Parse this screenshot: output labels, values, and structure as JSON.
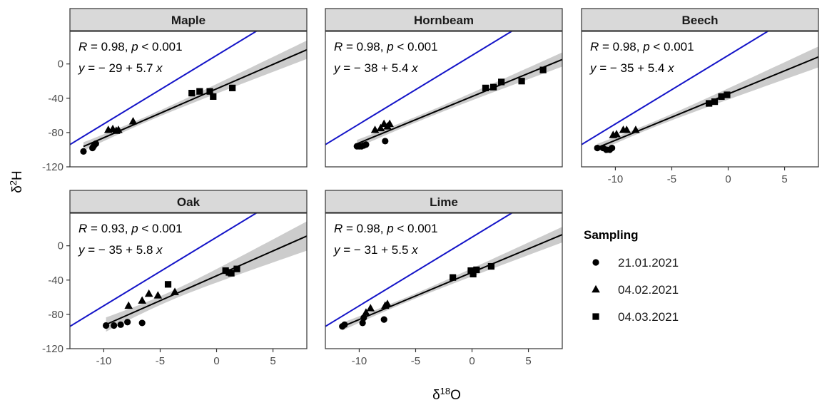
{
  "chart_data": {
    "type": "scatter",
    "xlabel": "δ¹⁸O",
    "ylabel": "δ²H",
    "xlim": [
      -13,
      8
    ],
    "ylim": [
      -120,
      38
    ],
    "x_ticks": [
      "-10",
      "-5",
      "0",
      "5"
    ],
    "x_tick_values": [
      -10,
      -5,
      0,
      5
    ],
    "y_ticks": [
      "0",
      "-40",
      "-80",
      "-120"
    ],
    "y_tick_values": [
      0,
      -40,
      -80,
      -120
    ],
    "grid": false,
    "legend": {
      "title": "Sampling",
      "position": "right",
      "entries": [
        {
          "label": "21.01.2021",
          "shape": "circle"
        },
        {
          "label": "04.02.2021",
          "shape": "triangle"
        },
        {
          "label": "04.03.2021",
          "shape": "square"
        }
      ]
    },
    "colors": {
      "reference_line": "#1414c8",
      "fit_line": "#000000",
      "confidence_band": "#cccccc",
      "strip": "#d9d9d9"
    },
    "reference_line": {
      "intercept": 10,
      "slope": 8
    },
    "panels": [
      {
        "name": "Maple",
        "stats": {
          "R": "0.98",
          "p": "0.001",
          "intercept": "29",
          "slope": "5.7"
        },
        "fit": {
          "intercept": -29,
          "slope": 5.7
        },
        "series": [
          {
            "shape": "circle",
            "points": [
              [
                -11.8,
                -102
              ],
              [
                -11.0,
                -98
              ],
              [
                -10.9,
                -96
              ],
              [
                -10.7,
                -93
              ]
            ]
          },
          {
            "shape": "triangle",
            "points": [
              [
                -9.6,
                -77
              ],
              [
                -9.2,
                -76
              ],
              [
                -8.9,
                -78
              ],
              [
                -8.7,
                -77
              ],
              [
                -7.4,
                -67
              ]
            ]
          },
          {
            "shape": "square",
            "points": [
              [
                -2.2,
                -34
              ],
              [
                -1.5,
                -32
              ],
              [
                -0.6,
                -32
              ],
              [
                -0.3,
                -38
              ],
              [
                1.4,
                -28
              ]
            ]
          }
        ]
      },
      {
        "name": "Hornbeam",
        "stats": {
          "R": "0.98",
          "p": "0.001",
          "intercept": "38",
          "slope": "5.4"
        },
        "fit": {
          "intercept": -38,
          "slope": 5.4
        },
        "series": [
          {
            "shape": "circle",
            "points": [
              [
                -10.2,
                -96
              ],
              [
                -10.0,
                -96
              ],
              [
                -9.8,
                -96
              ],
              [
                -9.6,
                -95
              ],
              [
                -9.4,
                -94
              ],
              [
                -7.7,
                -90
              ]
            ]
          },
          {
            "shape": "triangle",
            "points": [
              [
                -8.6,
                -77
              ],
              [
                -8.1,
                -75
              ],
              [
                -7.8,
                -70
              ],
              [
                -7.5,
                -73
              ],
              [
                -7.3,
                -70
              ]
            ]
          },
          {
            "shape": "square",
            "points": [
              [
                1.2,
                -28
              ],
              [
                1.9,
                -27
              ],
              [
                2.6,
                -21
              ],
              [
                4.4,
                -20
              ],
              [
                6.3,
                -7
              ]
            ]
          }
        ]
      },
      {
        "name": "Beech",
        "stats": {
          "R": "0.98",
          "p": "0.001",
          "intercept": "35",
          "slope": "5.4"
        },
        "fit": {
          "intercept": -35,
          "slope": 5.4
        },
        "series": [
          {
            "shape": "circle",
            "points": [
              [
                -11.6,
                -98
              ],
              [
                -11.1,
                -98
              ],
              [
                -10.8,
                -100
              ],
              [
                -10.5,
                -100
              ],
              [
                -10.3,
                -98
              ]
            ]
          },
          {
            "shape": "triangle",
            "points": [
              [
                -10.2,
                -83
              ],
              [
                -9.9,
                -82
              ],
              [
                -9.3,
                -77
              ],
              [
                -9.0,
                -77
              ],
              [
                -8.2,
                -77
              ]
            ]
          },
          {
            "shape": "square",
            "points": [
              [
                -1.7,
                -46
              ],
              [
                -1.2,
                -44
              ],
              [
                -0.6,
                -38
              ],
              [
                -0.1,
                -36
              ]
            ]
          }
        ]
      },
      {
        "name": "Oak",
        "stats": {
          "R": "0.93",
          "p": "0.001",
          "intercept": "35",
          "slope": "5.8"
        },
        "fit": {
          "intercept": -35,
          "slope": 5.8
        },
        "series": [
          {
            "shape": "circle",
            "points": [
              [
                -9.8,
                -93
              ],
              [
                -9.1,
                -93
              ],
              [
                -8.5,
                -92
              ],
              [
                -7.9,
                -89
              ],
              [
                -6.6,
                -90
              ]
            ]
          },
          {
            "shape": "triangle",
            "points": [
              [
                -7.8,
                -70
              ],
              [
                -6.6,
                -64
              ],
              [
                -6.0,
                -56
              ],
              [
                -5.2,
                -58
              ],
              [
                -3.7,
                -54
              ]
            ]
          },
          {
            "shape": "square",
            "points": [
              [
                -4.3,
                -45
              ],
              [
                0.8,
                -29
              ],
              [
                1.1,
                -31
              ],
              [
                1.3,
                -32
              ],
              [
                1.8,
                -27
              ]
            ]
          }
        ]
      },
      {
        "name": "Lime",
        "stats": {
          "R": "0.98",
          "p": "0.001",
          "intercept": "31",
          "slope": "5.5"
        },
        "fit": {
          "intercept": -31,
          "slope": 5.5
        },
        "series": [
          {
            "shape": "circle",
            "points": [
              [
                -11.5,
                -94
              ],
              [
                -11.3,
                -92
              ],
              [
                -9.7,
                -90
              ],
              [
                -9.6,
                -84
              ],
              [
                -7.8,
                -86
              ]
            ]
          },
          {
            "shape": "triangle",
            "points": [
              [
                -9.4,
                -78
              ],
              [
                -9.0,
                -73
              ],
              [
                -7.7,
                -70
              ],
              [
                -7.5,
                -68
              ]
            ]
          },
          {
            "shape": "square",
            "points": [
              [
                -1.7,
                -37
              ],
              [
                -0.1,
                -29
              ],
              [
                0.1,
                -33
              ],
              [
                0.4,
                -28
              ],
              [
                1.7,
                -24
              ]
            ]
          }
        ]
      }
    ]
  }
}
